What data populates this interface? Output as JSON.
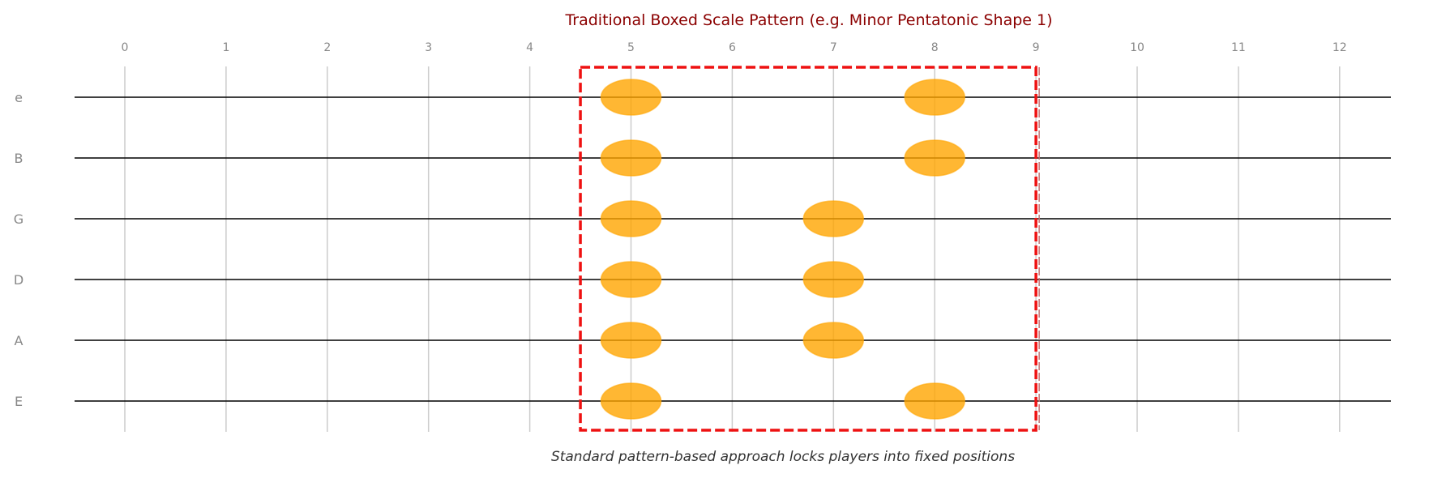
{
  "title": "Traditional Boxed Scale Pattern (e.g. Minor Pentatonic Shape 1)",
  "caption": "Standard pattern-based approach locks players into fixed positions",
  "frets": [
    "0",
    "1",
    "2",
    "3",
    "4",
    "5",
    "6",
    "7",
    "8",
    "9",
    "10",
    "11",
    "12"
  ],
  "strings": [
    "e",
    "B",
    "G",
    "D",
    "A",
    "E"
  ],
  "notes": [
    {
      "string": "e",
      "fret": 5
    },
    {
      "string": "e",
      "fret": 8
    },
    {
      "string": "B",
      "fret": 5
    },
    {
      "string": "B",
      "fret": 8
    },
    {
      "string": "G",
      "fret": 5
    },
    {
      "string": "G",
      "fret": 7
    },
    {
      "string": "D",
      "fret": 5
    },
    {
      "string": "D",
      "fret": 7
    },
    {
      "string": "A",
      "fret": 5
    },
    {
      "string": "A",
      "fret": 7
    },
    {
      "string": "E",
      "fret": 5
    },
    {
      "string": "E",
      "fret": 8
    }
  ],
  "pattern_box": {
    "fret_start": 4.5,
    "fret_end": 9
  },
  "colors": {
    "title": "#8b0000",
    "caption": "#333333",
    "label": "#888888",
    "string_line": "#000000",
    "fret_line": "#cccccc",
    "note_fill": "#ffa500",
    "box_border": "#ee1111",
    "box_edge_accent": "#c27070"
  }
}
